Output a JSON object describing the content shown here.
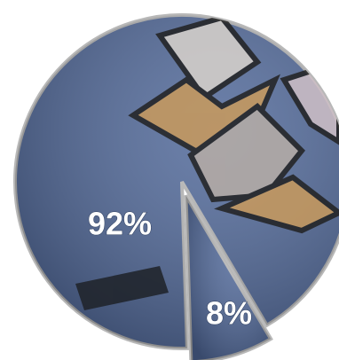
{
  "chart_data": {
    "type": "pie",
    "values": [
      92,
      8
    ],
    "value_labels": [
      "92%",
      "8%"
    ],
    "color": "#51699a"
  }
}
